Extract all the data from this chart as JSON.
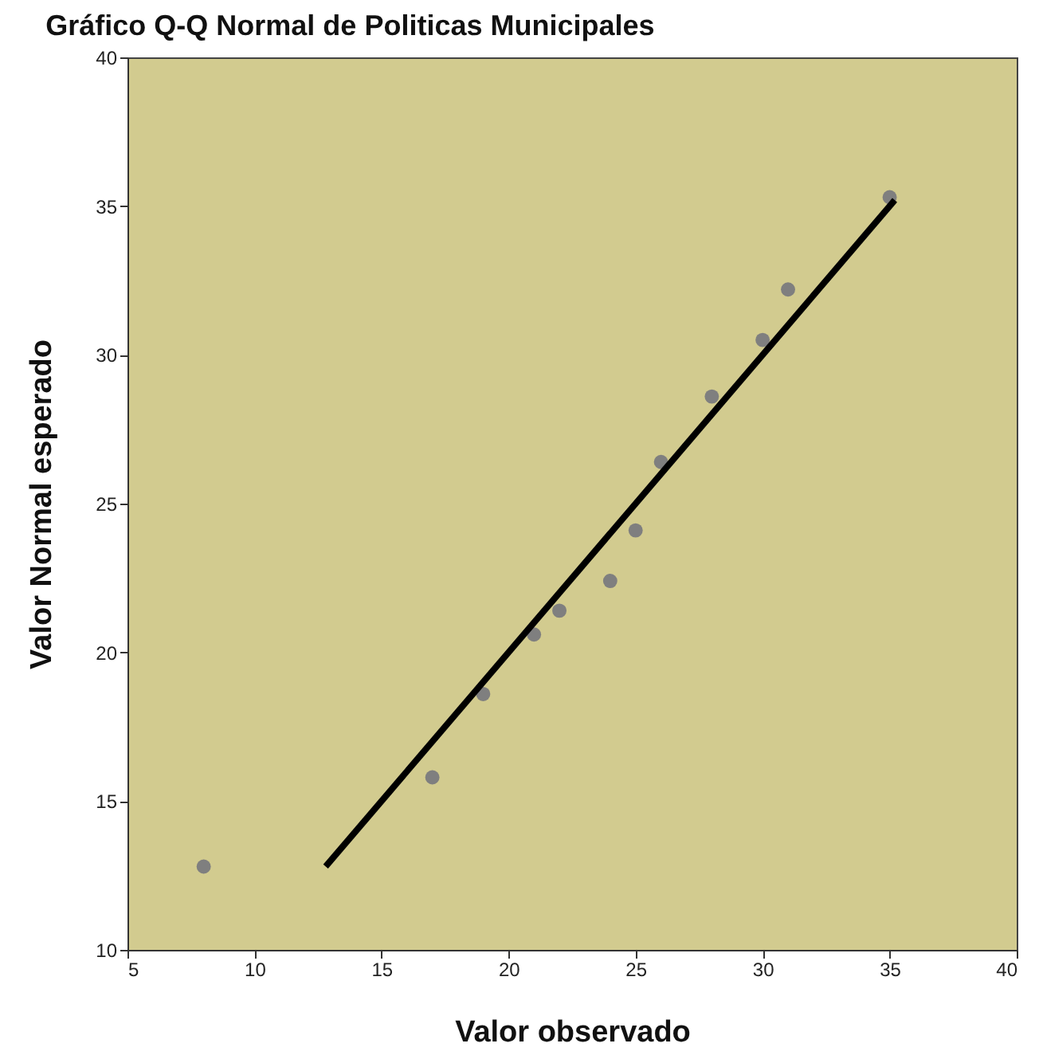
{
  "chart_data": {
    "type": "scatter",
    "title": "Gráfico Q-Q Normal de Politicas Municipales",
    "xlabel": "Valor observado",
    "ylabel": "Valor Normal esperado",
    "xlim": [
      5,
      40
    ],
    "ylim": [
      10,
      40
    ],
    "xticks": [
      5,
      10,
      15,
      20,
      25,
      30,
      35,
      40
    ],
    "yticks": [
      10,
      15,
      20,
      25,
      30,
      35,
      40
    ],
    "grid": false,
    "series": [
      {
        "marker": "circle",
        "color": "#7f7f7f",
        "x": [
          8,
          17,
          19,
          21,
          22,
          24,
          25,
          26,
          28,
          30,
          31,
          35
        ],
        "values": [
          12.8,
          15.8,
          18.6,
          20.6,
          21.4,
          22.4,
          24.1,
          26.4,
          28.6,
          30.5,
          32.2,
          35.3
        ]
      },
      {
        "type": "line",
        "color": "#000000",
        "line_style": "solid",
        "x": [
          12.8,
          35.2
        ],
        "values": [
          12.8,
          35.2
        ]
      }
    ]
  }
}
